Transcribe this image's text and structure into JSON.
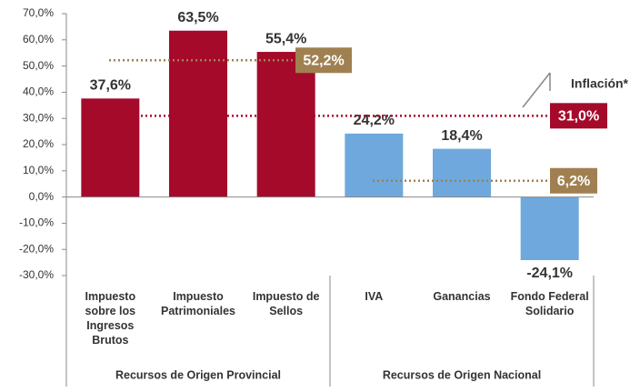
{
  "chart_data": {
    "type": "bar",
    "categories": [
      "Impuesto sobre los Ingresos Brutos",
      "Impuesto Patrimoniales",
      "Impuesto de Sellos",
      "IVA",
      "Ganancias",
      "Fondo Federal Solidario"
    ],
    "values": [
      37.6,
      63.5,
      55.4,
      24.2,
      18.4,
      -24.1
    ],
    "value_labels": [
      "37,6%",
      "63,5%",
      "55,4%",
      "24,2%",
      "18,4%",
      "-24,1%"
    ],
    "colors": [
      "#a50a2a",
      "#a50a2a",
      "#a50a2a",
      "#6fa8dc",
      "#6fa8dc",
      "#6fa8dc"
    ],
    "ylim": [
      -30,
      70
    ],
    "yticks": [
      {
        "value": -30,
        "label": "-30,0%"
      },
      {
        "value": -20,
        "label": "-20,0%"
      },
      {
        "value": -10,
        "label": "-10,0%"
      },
      {
        "value": 0,
        "label": "0,0%"
      },
      {
        "value": 10,
        "label": "10,0%"
      },
      {
        "value": 20,
        "label": "20,0%"
      },
      {
        "value": 30,
        "label": "30,0%"
      },
      {
        "value": 40,
        "label": "40,0%"
      },
      {
        "value": 50,
        "label": "50,0%"
      },
      {
        "value": 60,
        "label": "60,0%"
      },
      {
        "value": 70,
        "label": "70,0%"
      }
    ],
    "reference_lines": [
      {
        "value": 52.2,
        "label": "52,2%",
        "color": "#a08050"
      },
      {
        "value": 31.0,
        "label": "31,0%",
        "color": "#a50a2a"
      },
      {
        "value": 6.2,
        "label": "6,2%",
        "color": "#a08050"
      }
    ],
    "annotation": "Inflación*",
    "groups": [
      {
        "name": "Recursos de Origen Provincial"
      },
      {
        "name": "Recursos de Origen Nacional"
      }
    ]
  }
}
